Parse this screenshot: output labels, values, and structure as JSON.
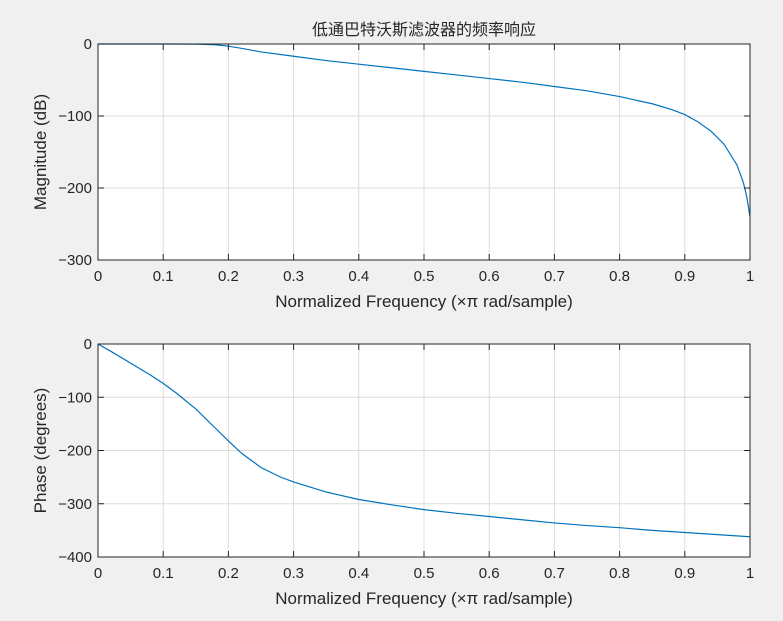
{
  "chart_data": [
    {
      "type": "line",
      "title": "低通巴特沃斯滤波器的频率响应",
      "xlabel": "Normalized Frequency  (×π rad/sample)",
      "ylabel": "Magnitude (dB)",
      "xlim": [
        0,
        1
      ],
      "ylim": [
        -300,
        0
      ],
      "xticks": [
        0,
        0.1,
        0.2,
        0.3,
        0.4,
        0.5,
        0.6,
        0.7,
        0.8,
        0.9,
        1
      ],
      "xtick_labels": [
        "0",
        "0.1",
        "0.2",
        "0.3",
        "0.4",
        "0.5",
        "0.6",
        "0.7",
        "0.8",
        "0.9",
        "1"
      ],
      "yticks": [
        0,
        -100,
        -200,
        -300
      ],
      "ytick_labels": [
        "0",
        "−100",
        "−200",
        "−300"
      ],
      "grid": true,
      "series": [
        {
          "color": "#0072bd",
          "x": [
            0,
            0.05,
            0.1,
            0.15,
            0.18,
            0.2,
            0.22,
            0.25,
            0.3,
            0.35,
            0.4,
            0.45,
            0.5,
            0.55,
            0.6,
            0.65,
            0.7,
            0.75,
            0.8,
            0.85,
            0.88,
            0.9,
            0.92,
            0.94,
            0.96,
            0.98,
            0.99,
            0.995,
            1
          ],
          "y": [
            0,
            0,
            0,
            -0.2,
            -1,
            -3,
            -6,
            -11,
            -17,
            -23,
            -28,
            -33,
            -38,
            -43,
            -48,
            -53,
            -59,
            -65,
            -73,
            -83,
            -91,
            -98,
            -108,
            -121,
            -139,
            -168,
            -193,
            -212,
            -240
          ]
        }
      ]
    },
    {
      "type": "line",
      "xlabel": "Normalized Frequency  (×π rad/sample)",
      "ylabel": "Phase (degrees)",
      "xlim": [
        0,
        1
      ],
      "ylim": [
        -400,
        0
      ],
      "xticks": [
        0,
        0.1,
        0.2,
        0.3,
        0.4,
        0.5,
        0.6,
        0.7,
        0.8,
        0.9,
        1
      ],
      "xtick_labels": [
        "0",
        "0.1",
        "0.2",
        "0.3",
        "0.4",
        "0.5",
        "0.6",
        "0.7",
        "0.8",
        "0.9",
        "1"
      ],
      "yticks": [
        0,
        -100,
        -200,
        -300,
        -400
      ],
      "ytick_labels": [
        "0",
        "−100",
        "−200",
        "−300",
        "−400"
      ],
      "grid": true,
      "series": [
        {
          "color": "#0072bd",
          "x": [
            0,
            0.02,
            0.05,
            0.08,
            0.1,
            0.12,
            0.15,
            0.18,
            0.2,
            0.22,
            0.25,
            0.28,
            0.3,
            0.35,
            0.4,
            0.45,
            0.5,
            0.55,
            0.6,
            0.65,
            0.7,
            0.75,
            0.8,
            0.85,
            0.9,
            0.95,
            1
          ],
          "y": [
            0,
            -14,
            -36,
            -58,
            -74,
            -92,
            -122,
            -158,
            -182,
            -205,
            -232,
            -250,
            -259,
            -278,
            -292,
            -302,
            -311,
            -318,
            -324,
            -330,
            -336,
            -341,
            -345,
            -350,
            -354,
            -358,
            -362
          ]
        }
      ]
    }
  ]
}
